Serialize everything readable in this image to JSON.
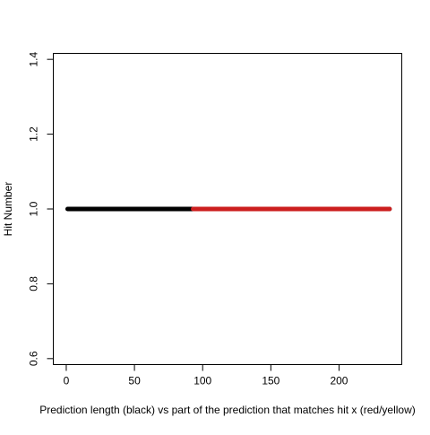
{
  "chart_data": {
    "type": "line",
    "title": "",
    "xlabel": "Prediction length (black) vs part of the prediction that matches hit x (red/yellow)",
    "ylabel": "Hit Number",
    "xlim": [
      -9.5,
      246
    ],
    "ylim": [
      0.584,
      1.416
    ],
    "x_ticks": [
      0,
      50,
      100,
      150,
      200
    ],
    "x_tick_labels": [
      "0",
      "50",
      "100",
      "150",
      "200"
    ],
    "y_ticks": [
      0.6,
      0.8,
      1.0,
      1.2,
      1.4
    ],
    "y_tick_labels": [
      "0.6",
      "0.8",
      "1.0",
      "1.2",
      "1.4"
    ],
    "grid": false,
    "legend": "none",
    "series": [
      {
        "color": "#000000",
        "x": [
          1,
          237
        ],
        "y": [
          1.0,
          1.0
        ]
      },
      {
        "color": "#cc1e1e",
        "x": [
          93,
          237
        ],
        "y": [
          1.0,
          1.0
        ]
      }
    ]
  }
}
